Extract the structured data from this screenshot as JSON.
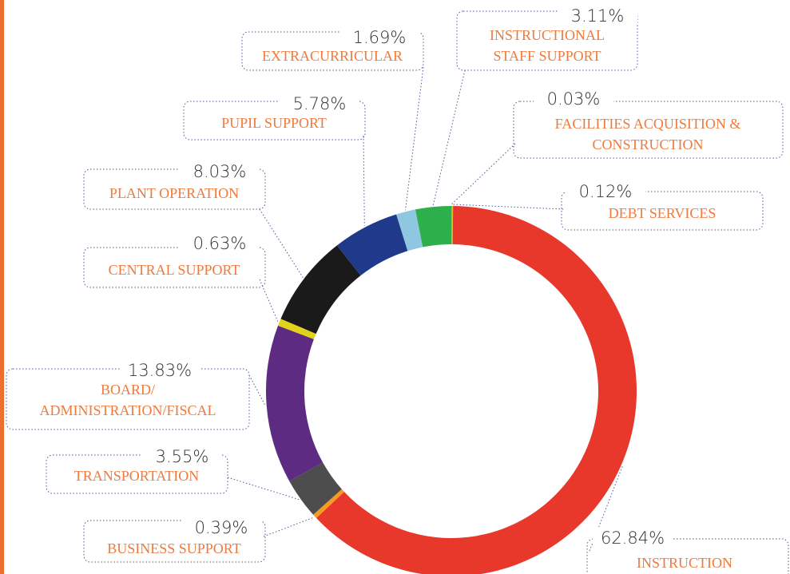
{
  "chart_data": {
    "type": "donut",
    "categories": [
      "FACILITIES ACQUISITION &\nCONSTRUCTION",
      "DEBT SERVICES",
      "INSTRUCTION",
      "BUSINESS SUPPORT",
      "TRANSPORTATION",
      "BOARD/\nADMINISTRATION/FISCAL",
      "CENTRAL SUPPORT",
      "PLANT OPERATION",
      "PUPIL SUPPORT",
      "EXTRACURRICULAR",
      "INSTRUCTIONAL\nSTAFF SUPPORT"
    ],
    "values": [
      0.03,
      0.12,
      62.84,
      0.39,
      3.55,
      13.83,
      0.63,
      8.03,
      5.78,
      1.69,
      3.11
    ],
    "value_labels": [
      "0.03%",
      "0.12%",
      "62.84%",
      "0.39%",
      "3.55%",
      "13.83%",
      "0.63%",
      "8.03%",
      "5.78%",
      "1.69%",
      "3.11%"
    ],
    "colors": [
      "#7a7a7a",
      "#f2b134",
      "#e8382b",
      "#f59a23",
      "#4d4d4d",
      "#5e2b83",
      "#e3d21a",
      "#1a1a1a",
      "#1f3a8a",
      "#8fc6e0",
      "#2db04b"
    ]
  }
}
